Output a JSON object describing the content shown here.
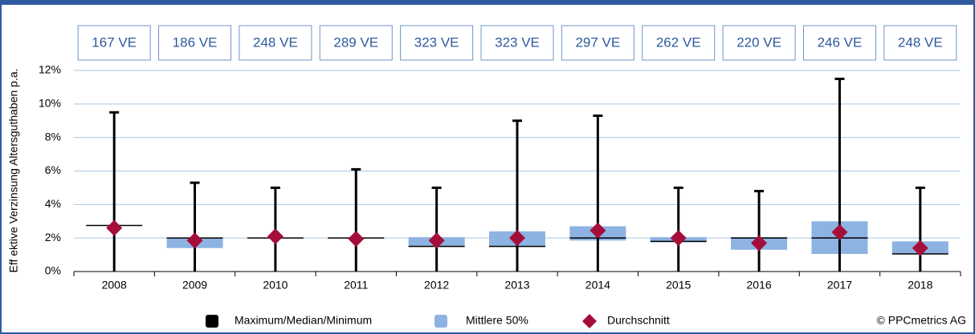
{
  "chart_data": {
    "type": "boxplot",
    "y_label": "Eff ektive Verzinsung Altersguthaben p.a.",
    "categories": [
      "2008",
      "2009",
      "2010",
      "2011",
      "2012",
      "2013",
      "2014",
      "2015",
      "2016",
      "2017",
      "2018"
    ],
    "count_labels": [
      "167 VE",
      "186 VE",
      "248 VE",
      "289 VE",
      "323 VE",
      "323 VE",
      "297 VE",
      "262 VE",
      "220 VE",
      "246 VE",
      "248 VE"
    ],
    "ylim": [
      0,
      12
    ],
    "yticks": [
      {
        "value": 0,
        "label": "0%"
      },
      {
        "value": 2,
        "label": "2%"
      },
      {
        "value": 4,
        "label": "4%"
      },
      {
        "value": 6,
        "label": "6%"
      },
      {
        "value": 8,
        "label": "8%"
      },
      {
        "value": 10,
        "label": "10%"
      },
      {
        "value": 12,
        "label": "12%"
      }
    ],
    "grid": true,
    "series": [
      {
        "name": "Maximum/Median/Minimum",
        "color": "#000000",
        "max": [
          9.5,
          5.3,
          5.0,
          6.1,
          5.0,
          9.0,
          9.3,
          5.0,
          4.8,
          11.5,
          5.0
        ],
        "median": [
          2.75,
          2.0,
          2.0,
          2.0,
          1.5,
          1.5,
          2.0,
          1.8,
          2.0,
          2.0,
          1.05
        ],
        "min": [
          0,
          0,
          0,
          0,
          0,
          0,
          0,
          0,
          0,
          0,
          0
        ]
      },
      {
        "name": "Mittlere 50%",
        "color": "#8db3e2",
        "q1": [
          null,
          1.4,
          null,
          null,
          1.5,
          1.5,
          1.85,
          1.75,
          1.3,
          1.05,
          1.05
        ],
        "q3": [
          null,
          2.0,
          null,
          null,
          2.05,
          2.4,
          2.7,
          2.05,
          2.05,
          3.0,
          1.8
        ]
      },
      {
        "name": "Durchschnitt",
        "color": "#a50e3a",
        "values": [
          2.6,
          1.85,
          2.1,
          1.95,
          1.85,
          2.0,
          2.45,
          2.0,
          1.7,
          2.35,
          1.4
        ]
      }
    ],
    "copyright": "© PPCmetrics AG"
  }
}
